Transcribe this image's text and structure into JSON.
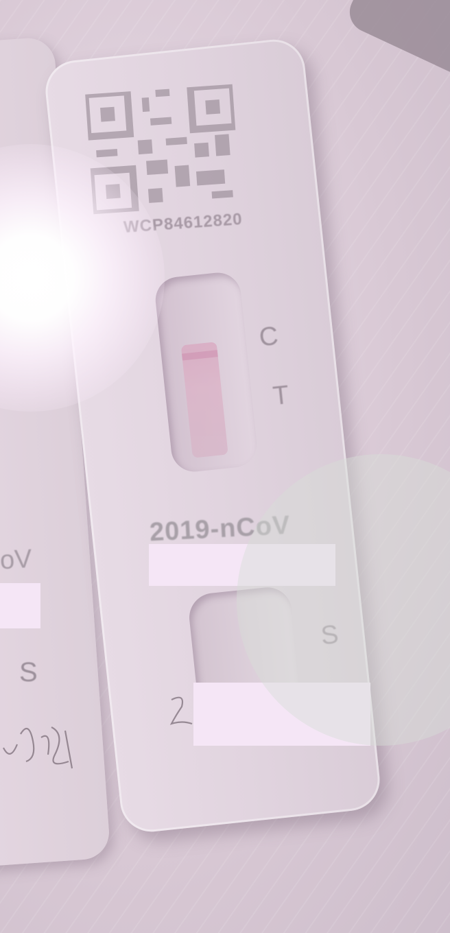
{
  "photo": {
    "subject": "rapid antigen test cassettes",
    "qr_code_label": "WCP84612820",
    "control_mark": "C",
    "test_mark": "T",
    "sample_mark": "S",
    "brand_text": "2019-nCoV",
    "left_cassette_text": "oV",
    "left_cassette_sample_mark": "S"
  },
  "colors": {
    "background": "#d9cad6",
    "redaction": "#f5e6f6",
    "strip": "#d9a9c1"
  }
}
